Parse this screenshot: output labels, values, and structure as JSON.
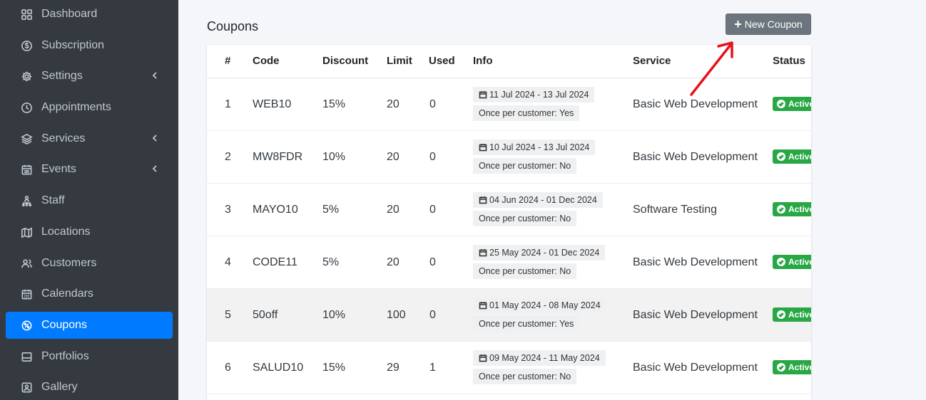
{
  "sidebar": {
    "items": [
      {
        "label": "Dashboard",
        "icon": "dashboard-icon"
      },
      {
        "label": "Subscription",
        "icon": "dollar-circle-icon"
      },
      {
        "label": "Settings",
        "icon": "gear-icon"
      },
      {
        "label": "Appointments",
        "icon": "clock-icon"
      },
      {
        "label": "Services",
        "icon": "layers-icon"
      },
      {
        "label": "Events",
        "icon": "calendar-icon"
      },
      {
        "label": "Staff",
        "icon": "sitemap-icon"
      },
      {
        "label": "Locations",
        "icon": "map-icon"
      },
      {
        "label": "Customers",
        "icon": "users-icon"
      },
      {
        "label": "Calendars",
        "icon": "calendar-days-icon"
      },
      {
        "label": "Coupons",
        "icon": "coupon-icon"
      },
      {
        "label": "Portfolios",
        "icon": "portfolio-icon"
      },
      {
        "label": "Gallery",
        "icon": "gallery-icon"
      }
    ],
    "active": "Coupons",
    "colors": {
      "background": "#343a40",
      "active": "#007bff",
      "text": "#c2c7d0"
    }
  },
  "page": {
    "title": "Coupons",
    "new_button_label": "New Coupon"
  },
  "table": {
    "headers": {
      "num": "#",
      "code": "Code",
      "discount": "Discount",
      "limit": "Limit",
      "used": "Used",
      "info": "Info",
      "service": "Service",
      "status": "Status"
    },
    "rows": [
      {
        "num": "1",
        "code": "WEB10",
        "discount": "15%",
        "limit": "20",
        "used": "0",
        "dates": "11 Jul 2024 - 13 Jul 2024",
        "once": "Once per customer: Yes",
        "service": "Basic Web Development",
        "status": "Active"
      },
      {
        "num": "2",
        "code": "MW8FDR",
        "discount": "10%",
        "limit": "20",
        "used": "0",
        "dates": "10 Jul 2024 - 13 Jul 2024",
        "once": "Once per customer: No",
        "service": "Basic Web Development",
        "status": "Active"
      },
      {
        "num": "3",
        "code": "MAYO10",
        "discount": "5%",
        "limit": "20",
        "used": "0",
        "dates": "04 Jun 2024 - 01 Dec 2024",
        "once": "Once per customer: No",
        "service": "Software Testing",
        "status": "Active"
      },
      {
        "num": "4",
        "code": "CODE11",
        "discount": "5%",
        "limit": "20",
        "used": "0",
        "dates": "25 May 2024 - 01 Dec 2024",
        "once": "Once per customer: No",
        "service": "Basic Web Development",
        "status": "Active"
      },
      {
        "num": "5",
        "code": "50off",
        "discount": "10%",
        "limit": "100",
        "used": "0",
        "dates": "01 May 2024 - 08 May 2024",
        "once": "Once per customer: Yes",
        "service": "Basic Web Development",
        "status": "Active"
      },
      {
        "num": "6",
        "code": "SALUD10",
        "discount": "15%",
        "limit": "29",
        "used": "1",
        "dates": "09 May 2024 - 11 May 2024",
        "once": "Once per customer: No",
        "service": "Basic Web Development",
        "status": "Active"
      }
    ]
  },
  "colors": {
    "button": "#6c757d",
    "status_active": "#28a745",
    "annotation_arrow": "#e8101a"
  }
}
